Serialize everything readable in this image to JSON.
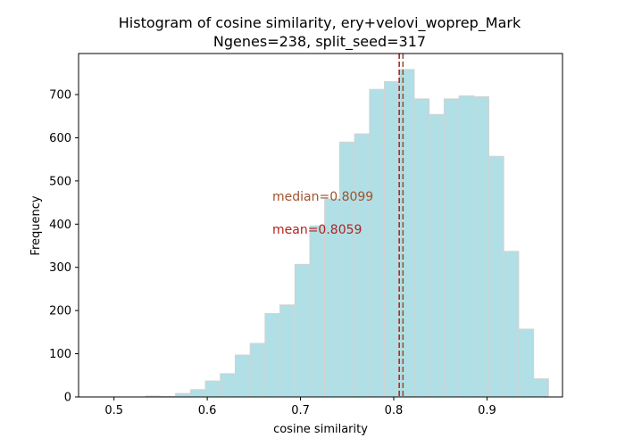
{
  "chart_data": {
    "type": "bar",
    "title_line1": "Histogram of cosine similarity, ery+velovi_woprep_Mark",
    "title_line2": "Ngenes=238, split_seed=317",
    "xlabel": "cosine similarity",
    "ylabel": "Frequency",
    "xlim": [
      0.462,
      0.981
    ],
    "ylim": [
      0,
      795
    ],
    "xticks": [
      0.5,
      0.6,
      0.7,
      0.8,
      0.9
    ],
    "xtick_labels": [
      "0.5",
      "0.6",
      "0.7",
      "0.8",
      "0.9"
    ],
    "yticks": [
      0,
      100,
      200,
      300,
      400,
      500,
      600,
      700
    ],
    "ytick_labels": [
      "0",
      "100",
      "200",
      "300",
      "400",
      "500",
      "600",
      "700"
    ],
    "bin_edges": [
      0.486,
      0.502,
      0.518,
      0.534,
      0.55,
      0.566,
      0.582,
      0.598,
      0.614,
      0.63,
      0.646,
      0.662,
      0.678,
      0.694,
      0.71,
      0.726,
      0.742,
      0.758,
      0.774,
      0.79,
      0.806,
      0.822,
      0.838,
      0.854,
      0.87,
      0.886,
      0.902,
      0.918,
      0.934,
      0.95,
      0.966
    ],
    "counts": [
      0,
      0,
      0,
      2,
      1,
      8,
      17,
      37,
      54,
      97,
      124,
      193,
      213,
      307,
      396,
      458,
      590,
      609,
      712,
      730,
      758,
      690,
      654,
      690,
      697,
      695,
      557,
      337,
      157,
      42
    ],
    "bar_color": "#b0dfe5",
    "bar_edge_color": "#d3d3d3",
    "median": 0.8099,
    "mean": 0.8059,
    "median_label": "median=0.8099",
    "mean_label": "mean=0.8059",
    "median_color": "#a0522d",
    "mean_color": "#b22222"
  }
}
